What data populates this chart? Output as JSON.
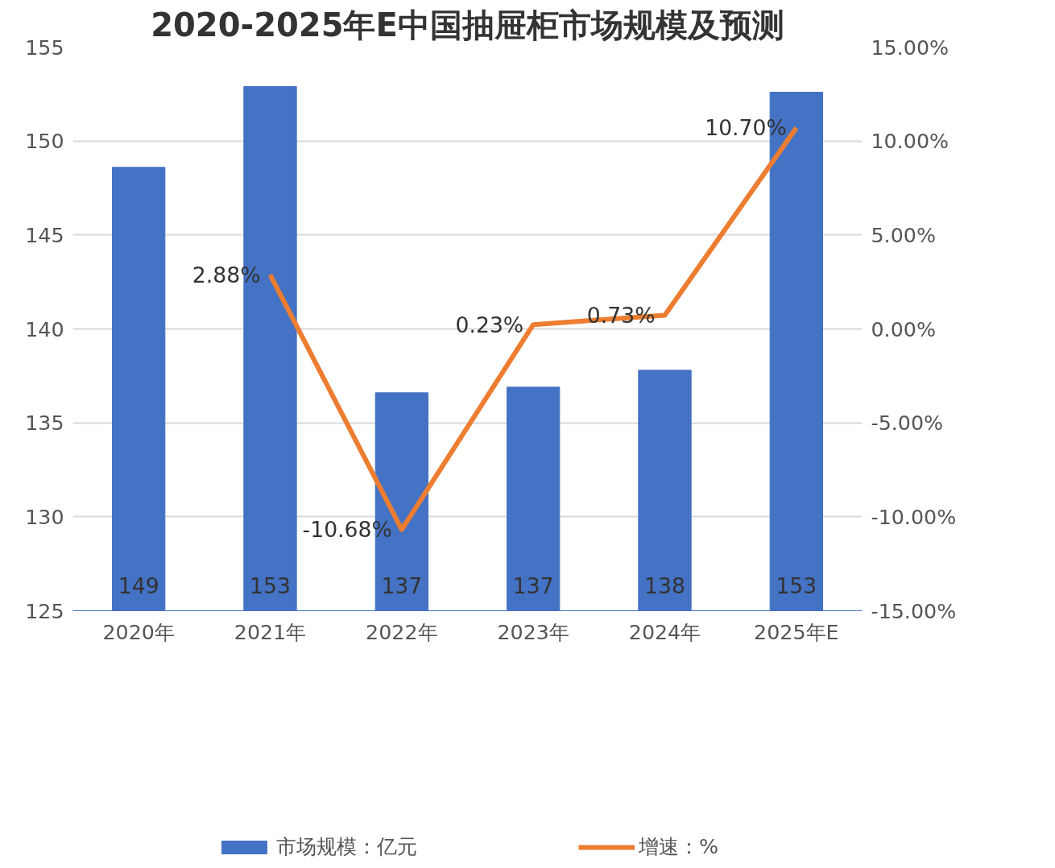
{
  "chart_data": {
    "type": "bar",
    "title": "2020-2025年E中国抽屉柜市场规模及预测",
    "categories": [
      "2020年",
      "2021年",
      "2022年",
      "2023年",
      "2024年",
      "2025年E"
    ],
    "series": [
      {
        "name": "市场规模：亿元",
        "type": "bar",
        "color": "#4472c4",
        "values": [
          148.6,
          152.9,
          136.6,
          136.9,
          137.8,
          152.6
        ],
        "value_labels": [
          "149",
          "153",
          "137",
          "137",
          "138",
          "153"
        ]
      },
      {
        "name": "增速：%",
        "type": "line",
        "axis": "y2",
        "color": "#ed7d31",
        "values": [
          null,
          2.88,
          -10.68,
          0.23,
          0.73,
          10.7
        ],
        "value_labels": [
          null,
          "2.88%",
          "-10.68%",
          "0.23%",
          "0.73%",
          "10.70%"
        ]
      }
    ],
    "ylim": [
      125,
      155
    ],
    "yticks": [
      125,
      130,
      135,
      140,
      145,
      150,
      155
    ],
    "y2lim": [
      -15,
      15
    ],
    "y2ticks": [
      {
        "value": -15,
        "label": "-15.00%"
      },
      {
        "value": -10,
        "label": "-10.00%"
      },
      {
        "value": -5,
        "label": "-5.00%"
      },
      {
        "value": 0,
        "label": "0.00%"
      },
      {
        "value": 5,
        "label": "5.00%"
      },
      {
        "value": 10,
        "label": "10.00%"
      },
      {
        "value": 15,
        "label": "15.00%"
      }
    ],
    "grid": "y",
    "legend": "bottom",
    "marker": "none",
    "line_style": "solid"
  }
}
